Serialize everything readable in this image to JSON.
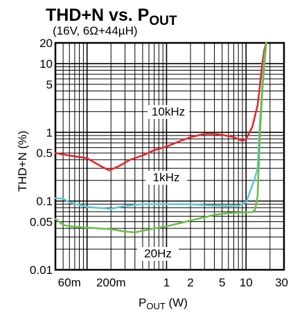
{
  "chart_data": {
    "type": "line",
    "title": "THD+N vs. P",
    "title_sub": "OUT",
    "subtitle": "(16V, 6Ω+44µH)",
    "xlabel": "P",
    "xlabel_sub": "OUT",
    "xlabel_unit": " (W)",
    "ylabel": "THD+N (%)",
    "x_scale": "log",
    "y_scale": "log",
    "xlim": [
      0.04,
      30
    ],
    "ylim": [
      0.01,
      20
    ],
    "grid": true,
    "x_ticks": [
      {
        "value": 0.06,
        "label": "60m"
      },
      {
        "value": 0.2,
        "label": "200m"
      },
      {
        "value": 1,
        "label": "1"
      },
      {
        "value": 2,
        "label": "2"
      },
      {
        "value": 5,
        "label": "5"
      },
      {
        "value": 10,
        "label": "10"
      },
      {
        "value": 30,
        "label": "30"
      }
    ],
    "y_ticks": [
      {
        "value": 0.01,
        "label": "0.01"
      },
      {
        "value": 0.05,
        "label": "0.05"
      },
      {
        "value": 0.1,
        "label": "0.1"
      },
      {
        "value": 0.5,
        "label": "0.5"
      },
      {
        "value": 1,
        "label": "1"
      },
      {
        "value": 5,
        "label": "5"
      },
      {
        "value": 10,
        "label": "10"
      },
      {
        "value": 20,
        "label": "20"
      }
    ],
    "series": [
      {
        "name": "10kHz",
        "color": "#e8262b",
        "points": [
          [
            0.04,
            0.5
          ],
          [
            0.06,
            0.46
          ],
          [
            0.1,
            0.42
          ],
          [
            0.15,
            0.32
          ],
          [
            0.19,
            0.28
          ],
          [
            0.25,
            0.32
          ],
          [
            0.35,
            0.4
          ],
          [
            0.5,
            0.46
          ],
          [
            0.7,
            0.55
          ],
          [
            1,
            0.62
          ],
          [
            1.5,
            0.75
          ],
          [
            2,
            0.85
          ],
          [
            3,
            0.95
          ],
          [
            4,
            0.95
          ],
          [
            5,
            0.92
          ],
          [
            7,
            0.85
          ],
          [
            9,
            0.75
          ],
          [
            10,
            0.8
          ],
          [
            12,
            1.2
          ],
          [
            14,
            2.5
          ],
          [
            15,
            5
          ],
          [
            16,
            10
          ],
          [
            17,
            16
          ],
          [
            18,
            20
          ]
        ]
      },
      {
        "name": "1kHz",
        "color": "#5bc8d6",
        "points": [
          [
            0.04,
            0.11
          ],
          [
            0.05,
            0.108
          ],
          [
            0.06,
            0.096
          ],
          [
            0.1,
            0.082
          ],
          [
            0.2,
            0.077
          ],
          [
            0.3,
            0.085
          ],
          [
            0.5,
            0.09
          ],
          [
            1,
            0.09
          ],
          [
            2,
            0.09
          ],
          [
            3,
            0.087
          ],
          [
            5,
            0.085
          ],
          [
            8,
            0.085
          ],
          [
            10,
            0.095
          ],
          [
            11,
            0.13
          ],
          [
            13,
            0.22
          ],
          [
            14,
            0.3
          ],
          [
            15,
            1.5
          ],
          [
            16,
            5
          ],
          [
            17,
            12
          ],
          [
            18,
            20
          ]
        ]
      },
      {
        "name": "20Hz",
        "color": "#6bbf45",
        "points": [
          [
            0.04,
            0.055
          ],
          [
            0.05,
            0.045
          ],
          [
            0.06,
            0.043
          ],
          [
            0.1,
            0.041
          ],
          [
            0.2,
            0.039
          ],
          [
            0.3,
            0.036
          ],
          [
            0.4,
            0.035
          ],
          [
            0.7,
            0.04
          ],
          [
            1,
            0.043
          ],
          [
            2,
            0.052
          ],
          [
            4,
            0.063
          ],
          [
            6,
            0.067
          ],
          [
            8,
            0.068
          ],
          [
            12,
            0.069
          ],
          [
            13,
            0.075
          ],
          [
            14,
            0.12
          ],
          [
            15,
            1
          ],
          [
            16,
            4
          ],
          [
            17,
            10
          ],
          [
            18,
            20
          ]
        ]
      }
    ]
  }
}
